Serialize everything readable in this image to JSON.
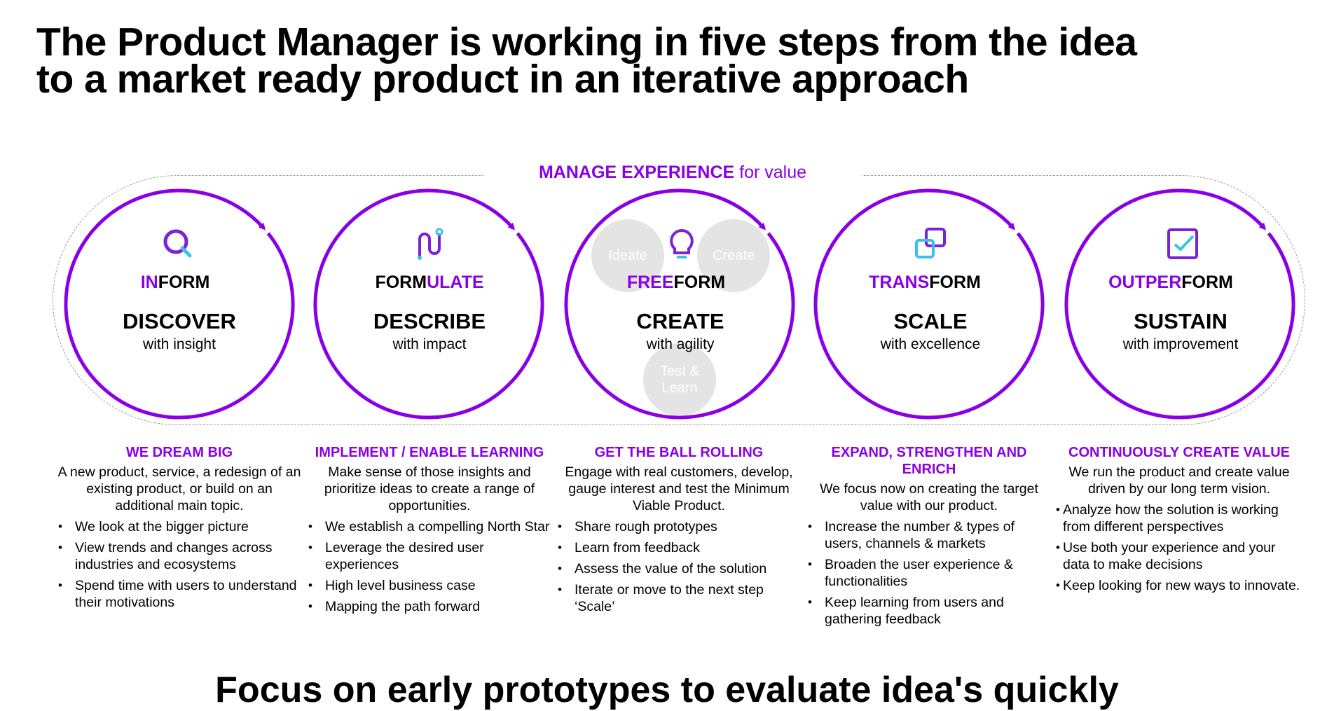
{
  "title": {
    "line1": "The Product Manager is working in five steps from the idea",
    "line2": "to a market ready product in an iterative approach"
  },
  "banner": {
    "strong": "MANAGE EXPERIENCE",
    "rest": " for value"
  },
  "accent_color": "#8a00e6",
  "steps": [
    {
      "icon": "magnifier-icon",
      "prefix_hl": "IN",
      "prefix_rest": "FORM",
      "verb": "DISCOVER",
      "sub": "with insight",
      "heading": "WE DREAM BIG",
      "desc": "A new product, service, a redesign of an existing product, or build on an additional main topic.",
      "bullets": [
        "We look at the bigger picture",
        "View trends and changes across industries and ecosystems",
        "Spend time with users to understand their motivations"
      ]
    },
    {
      "icon": "path-icon",
      "prefix_plain": "FORM",
      "prefix_hl2": "ULATE",
      "verb": "DESCRIBE",
      "sub": "with impact",
      "heading": "IMPLEMENT / ENABLE LEARNING",
      "desc": "Make sense of those insights and prioritize ideas to create a range of opportunities.",
      "bullets": [
        "We establish a compelling North Star",
        "Leverage the desired user experiences",
        "High level business case",
        "Mapping the path forward"
      ]
    },
    {
      "icon": "lightbulb-icon",
      "prefix_hl": "FREE",
      "prefix_rest": "FORM",
      "verb": "CREATE",
      "sub": "with agility",
      "bubbles": [
        "Ideate",
        "Create",
        "Test & Learn"
      ],
      "heading": "GET THE BALL ROLLING",
      "desc": "Engage with real customers, develop, gauge interest and test the Minimum Viable Product.",
      "bullets": [
        "Share rough prototypes",
        "Learn from feedback",
        "Assess the value of the solution",
        "Iterate or move to the next step ‘Scale’"
      ]
    },
    {
      "icon": "transform-squares-icon",
      "prefix_hl": "TRANS",
      "prefix_rest": "FORM",
      "verb": "SCALE",
      "sub": "with excellence",
      "heading": "EXPAND, STRENGTHEN AND ENRICH",
      "desc": "We focus now on creating the target value with our product.",
      "bullets": [
        "Increase the number & types of users, channels & markets",
        "Broaden the user experience & functionalities",
        "Keep learning from users and gathering feedback"
      ]
    },
    {
      "icon": "checkbox-icon",
      "prefix_hl": "OUTPER",
      "prefix_rest": "FORM",
      "verb": "SUSTAIN",
      "sub": "with improvement",
      "heading": "CONTINUOUSLY CREATE VALUE",
      "desc": "We run the product and create value driven by our long term vision.",
      "bullets": [
        " Analyze how the solution is working from different perspectives",
        "Use both your experience and your data to make decisions",
        "Keep looking for new ways to innovate."
      ]
    }
  ],
  "footer": "Focus on early prototypes to evaluate idea's quickly"
}
